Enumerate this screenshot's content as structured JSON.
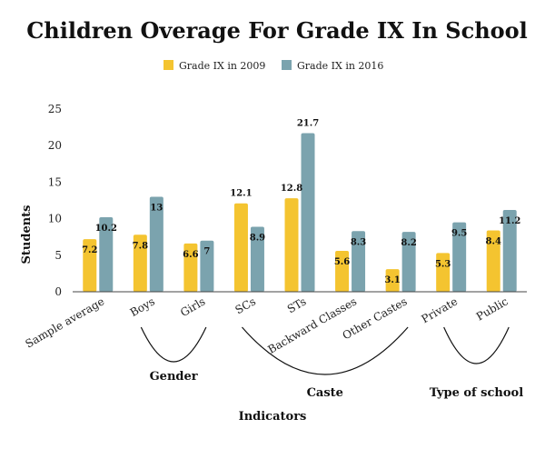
{
  "chart_data": {
    "type": "bar",
    "title": "Children Overage For Grade IX In School",
    "xlabel": "Indicators",
    "ylabel": "Students",
    "ylim": [
      0,
      25
    ],
    "yticks": [
      0,
      5,
      10,
      15,
      20,
      25
    ],
    "grid": false,
    "legend_position": "top-center",
    "categories": [
      "Sample average",
      "Boys",
      "Girls",
      "SCs",
      "STs",
      "Backward Classes",
      "Other Castes",
      "Private",
      "Public"
    ],
    "series": [
      {
        "name": "Grade IX in 2009",
        "color": "#F4C430",
        "values": [
          7.2,
          7.8,
          6.6,
          12.1,
          12.8,
          5.6,
          3.1,
          5.3,
          8.4
        ]
      },
      {
        "name": "Grade IX in 2016",
        "color": "#7BA3AE",
        "values": [
          10.2,
          13,
          7,
          8.9,
          21.7,
          8.3,
          8.2,
          9.5,
          11.2
        ]
      }
    ],
    "group_labels": [
      {
        "label": "Gender",
        "categories": [
          "Boys",
          "Girls"
        ]
      },
      {
        "label": "Caste",
        "categories": [
          "SCs",
          "STs",
          "Backward Classes",
          "Other Castes"
        ]
      },
      {
        "label": "Type of  school",
        "categories": [
          "Private",
          "Public"
        ]
      }
    ]
  }
}
